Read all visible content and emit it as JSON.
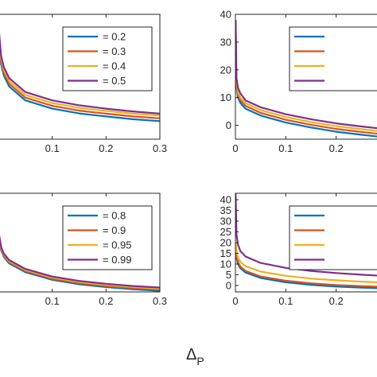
{
  "figure": {
    "xlabel_main": "Δ",
    "xlabel_sub": "P"
  },
  "chart_data": [
    {
      "type": "line",
      "panel": "top-left",
      "xlim": [
        0,
        0.3
      ],
      "ylim": [
        -5,
        40
      ],
      "x": [
        0.001,
        0.005,
        0.01,
        0.02,
        0.05,
        0.1,
        0.15,
        0.2,
        0.25,
        0.3
      ],
      "xticks": [
        0.1,
        0.2,
        0.3
      ],
      "xtick_labels": [
        "0.1",
        "0.2",
        "0.3"
      ],
      "yticks": [],
      "ytick_labels": [],
      "legend_placement": "top-right",
      "series": [
        {
          "name": "= 0.2",
          "color": "#0072BD",
          "values": [
            31.0,
            22.0,
            18.0,
            14.0,
            9.0,
            6.0,
            4.3,
            3.2,
            2.2,
            1.5
          ]
        },
        {
          "name": "= 0.3",
          "color": "#D95319",
          "values": [
            32.0,
            23.0,
            19.0,
            15.0,
            10.0,
            7.0,
            5.3,
            4.2,
            3.2,
            2.5
          ]
        },
        {
          "name": "= 0.4",
          "color": "#EDB120",
          "values": [
            33.0,
            24.0,
            20.0,
            16.0,
            11.0,
            8.0,
            6.3,
            5.2,
            4.2,
            3.5
          ]
        },
        {
          "name": "= 0.5",
          "color": "#7E2F8E",
          "values": [
            34.0,
            25.0,
            21.0,
            17.0,
            12.0,
            9.0,
            7.2,
            6.0,
            5.0,
            4.2
          ]
        }
      ]
    },
    {
      "type": "line",
      "panel": "top-right",
      "xlim": [
        0,
        0.3
      ],
      "ylim": [
        -5,
        40
      ],
      "x": [
        0.0005,
        0.002,
        0.005,
        0.01,
        0.02,
        0.05,
        0.1,
        0.15,
        0.2,
        0.25,
        0.3
      ],
      "xticks": [
        0,
        0.1,
        0.2
      ],
      "xtick_labels": [
        "0",
        "0.1",
        "0.2"
      ],
      "yticks": [
        0,
        10,
        20,
        30,
        40
      ],
      "ytick_labels": [
        "0",
        "10",
        "20",
        "30",
        "40"
      ],
      "legend_placement": "top-right",
      "series": [
        {
          "name": "",
          "color": "#0072BD",
          "values": [
            30.0,
            14.0,
            10.0,
            8.0,
            6.0,
            3.5,
            1.0,
            -0.8,
            -2.3,
            -3.4,
            -4.4
          ]
        },
        {
          "name": "",
          "color": "#D95319",
          "values": [
            33.0,
            15.0,
            11.0,
            9.0,
            7.0,
            4.5,
            2.0,
            0.2,
            -1.3,
            -2.4,
            -3.4
          ]
        },
        {
          "name": "",
          "color": "#EDB120",
          "values": [
            35.0,
            16.0,
            12.0,
            10.0,
            8.0,
            5.5,
            3.0,
            1.2,
            -0.3,
            -1.4,
            -2.4
          ]
        },
        {
          "name": "",
          "color": "#7E2F8E",
          "values": [
            38.0,
            17.0,
            13.5,
            11.5,
            9.0,
            6.5,
            4.0,
            2.2,
            0.7,
            -0.4,
            -1.4
          ]
        }
      ]
    },
    {
      "type": "line",
      "panel": "bottom-left",
      "xlim": [
        0,
        0.3
      ],
      "ylim": [
        -1,
        44
      ],
      "x": [
        0.001,
        0.005,
        0.01,
        0.02,
        0.05,
        0.1,
        0.15,
        0.2,
        0.25,
        0.3
      ],
      "xticks": [
        0.1,
        0.2,
        0.3
      ],
      "xtick_labels": [
        "0.1",
        "0.2",
        "0.3"
      ],
      "yticks": [],
      "ytick_labels": [],
      "legend_placement": "top-right",
      "series": [
        {
          "name": "= 0.8",
          "color": "#0072BD",
          "values": [
            24.0,
            18.0,
            15.0,
            12.0,
            8.0,
            4.5,
            2.5,
            1.2,
            0.2,
            -0.5
          ]
        },
        {
          "name": "= 0.9",
          "color": "#D95319",
          "values": [
            24.5,
            18.5,
            15.5,
            12.5,
            8.5,
            5.0,
            3.0,
            1.7,
            0.7,
            0.0
          ]
        },
        {
          "name": "= 0.95",
          "color": "#EDB120",
          "values": [
            25.0,
            19.0,
            16.0,
            13.0,
            9.0,
            5.5,
            3.5,
            2.2,
            1.2,
            0.5
          ]
        },
        {
          "name": "= 0.99",
          "color": "#7E2F8E",
          "values": [
            25.5,
            19.5,
            16.5,
            13.5,
            9.5,
            6.0,
            4.0,
            2.7,
            1.7,
            1.0
          ]
        }
      ]
    },
    {
      "type": "line",
      "panel": "bottom-right",
      "xlim": [
        0,
        0.3
      ],
      "ylim": [
        -3,
        43
      ],
      "x": [
        0.0005,
        0.002,
        0.005,
        0.01,
        0.02,
        0.05,
        0.1,
        0.15,
        0.2,
        0.25,
        0.3
      ],
      "xticks": [
        0,
        0.1,
        0.2
      ],
      "xtick_labels": [
        "0",
        "0.1",
        "0.2"
      ],
      "yticks": [
        0,
        5,
        10,
        15,
        20,
        25,
        30,
        35,
        40
      ],
      "ytick_labels": [
        "0",
        "5",
        "10",
        "15",
        "20",
        "25",
        "30",
        "35",
        "40"
      ],
      "legend_placement": "top-right",
      "series": [
        {
          "name": "",
          "color": "#0072BD",
          "values": [
            17.0,
            13.0,
            10.0,
            8.0,
            6.0,
            3.5,
            1.5,
            0.3,
            -0.5,
            -1.0,
            -1.4
          ]
        },
        {
          "name": "",
          "color": "#D95319",
          "values": [
            18.0,
            14.0,
            11.0,
            8.8,
            6.8,
            4.2,
            2.2,
            1.0,
            0.2,
            -0.3,
            -0.7
          ]
        },
        {
          "name": "",
          "color": "#EDB120",
          "values": [
            20.0,
            16.0,
            13.0,
            11.0,
            9.0,
            6.5,
            4.5,
            3.2,
            2.4,
            1.8,
            1.3
          ]
        },
        {
          "name": "",
          "color": "#7E2F8E",
          "values": [
            43.0,
            24.0,
            19.0,
            16.0,
            13.5,
            10.5,
            8.2,
            6.8,
            5.8,
            5.0,
            4.4
          ]
        }
      ]
    }
  ]
}
